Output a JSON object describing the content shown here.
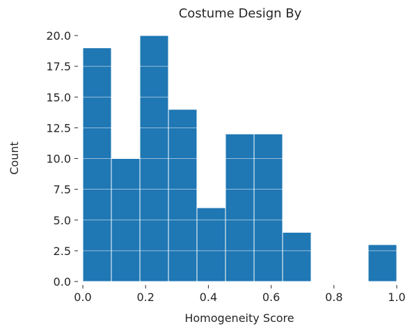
{
  "chart_data": {
    "type": "bar",
    "title": "Costume Design By",
    "xlabel": "Homogeneity Score",
    "ylabel": "Count",
    "bin_edges": [
      0.0,
      0.0909,
      0.1818,
      0.2727,
      0.3636,
      0.4545,
      0.5455,
      0.6364,
      0.7273,
      0.8182,
      0.9091,
      1.0
    ],
    "values": [
      19,
      10,
      20,
      14,
      6,
      12,
      12,
      4,
      0,
      0,
      3
    ],
    "xlim": [
      0.0,
      1.0
    ],
    "ylim": [
      0.0,
      20.0
    ],
    "xticks": [
      "0.0",
      "0.2",
      "0.4",
      "0.6",
      "0.8",
      "1.0"
    ],
    "xtick_values": [
      0.0,
      0.2,
      0.4,
      0.6,
      0.8,
      1.0
    ],
    "yticks": [
      "0.0",
      "2.5",
      "5.0",
      "7.5",
      "10.0",
      "12.5",
      "15.0",
      "17.5",
      "20.0"
    ],
    "ytick_values": [
      0.0,
      2.5,
      5.0,
      7.5,
      10.0,
      12.5,
      15.0,
      17.5,
      20.0
    ],
    "grid": true,
    "bar_color": "#1f77b4",
    "grid_color": "#ffffff",
    "text_color": "#262626"
  }
}
